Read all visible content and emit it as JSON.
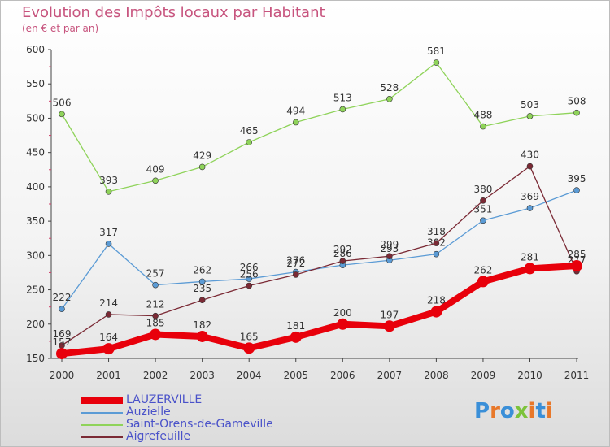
{
  "title": "Evolution des Impôts locaux par Habitant",
  "subtitle": "(en € et par an)",
  "logo": "Proxiti",
  "chart_data": {
    "type": "line",
    "title": "Evolution des Impôts locaux par Habitant",
    "subtitle": "(en € et par an)",
    "xlabel": "",
    "ylabel": "",
    "x": [
      "2000",
      "2001",
      "2002",
      "2003",
      "2004",
      "2005",
      "2006",
      "2007",
      "2008",
      "2009",
      "2010",
      "2011"
    ],
    "ylim": [
      150,
      600
    ],
    "yticks": [
      150,
      200,
      250,
      300,
      350,
      400,
      450,
      500,
      550,
      600
    ],
    "grid": false,
    "legend_position": "bottom-left",
    "series": [
      {
        "name": "LAUZERVILLE",
        "color": "#e8000b",
        "values": [
          157,
          164,
          185,
          182,
          165,
          181,
          200,
          197,
          218,
          262,
          281,
          285
        ]
      },
      {
        "name": "Auzielle",
        "color": "#5b9bd5",
        "values": [
          222,
          317,
          257,
          262,
          266,
          276,
          286,
          293,
          302,
          351,
          369,
          395
        ]
      },
      {
        "name": "Saint-Orens-de-Gameville",
        "color": "#8fd35a",
        "values": [
          506,
          393,
          409,
          429,
          465,
          494,
          513,
          528,
          581,
          488,
          503,
          508
        ]
      },
      {
        "name": "Aigrefeuille",
        "color": "#7b2a35",
        "values": [
          169,
          214,
          212,
          235,
          256,
          272,
          292,
          299,
          318,
          380,
          430,
          277
        ]
      }
    ]
  }
}
